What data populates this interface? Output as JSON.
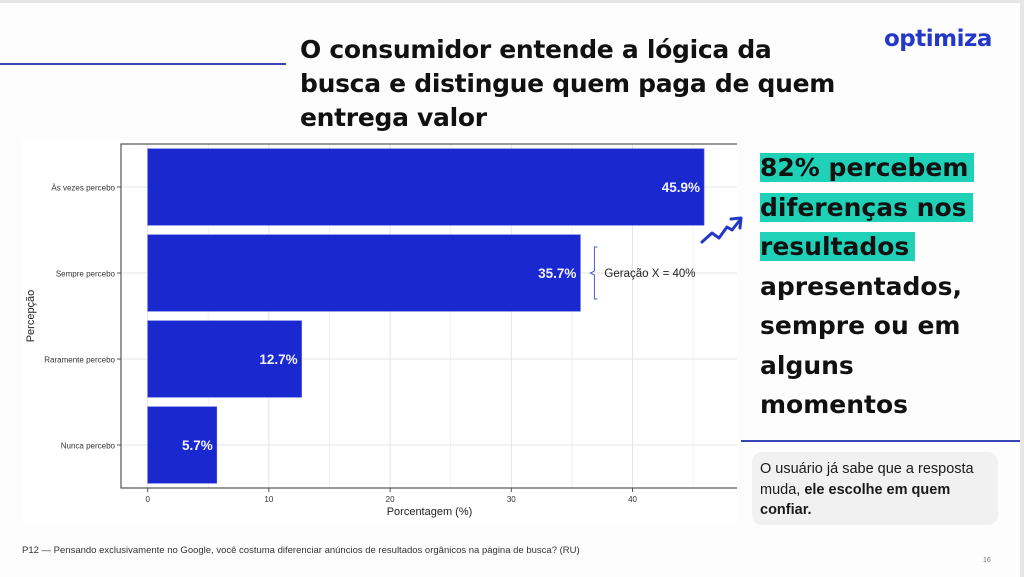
{
  "slide": {
    "title_lines": [
      "O consumidor entende a lógica da",
      "busca e distingue quem paga de quem",
      "entrega valor"
    ],
    "logo": "optimiza",
    "highlight_lines": [
      "82% percebem",
      "diferenças nos",
      "resultados"
    ],
    "plain_lines": [
      "apresentados,",
      "sempre ou em",
      "alguns",
      "momentos"
    ],
    "note": {
      "regular": "O usuário já sabe que a resposta muda, ",
      "bold": "ele escolhe em quem confiar."
    },
    "footnote": "P12 — Pensando exclusivamente no Google, você costuma diferenciar anúncios de resultados orgânicos na página de busca? (RU)",
    "page_number": "16",
    "colors": {
      "accent_blue": "#2438c8",
      "bar_blue": "#1a28d0",
      "highlight_teal": "#1fd1b6",
      "rule_blue": "#3a46b8"
    }
  },
  "chart_data": {
    "type": "bar",
    "orientation": "horizontal",
    "categories": [
      "Às vezes percebo",
      "Sempre percebo",
      "Raramente percebo",
      "Nunca percebo"
    ],
    "values": [
      45.9,
      35.7,
      12.7,
      5.7
    ],
    "data_labels": [
      "45.9%",
      "35.7%",
      "12.7%",
      "5.7%"
    ],
    "title": "",
    "xlabel": "Porcentagem (%)",
    "ylabel": "Percepção",
    "xlim": [
      -2.2,
      48.7
    ],
    "xticks": [
      0,
      10,
      20,
      30,
      40
    ],
    "grid": true,
    "legend": "none",
    "annotation": {
      "category": "Sempre percebo",
      "text": "Geração X = 40%"
    }
  }
}
